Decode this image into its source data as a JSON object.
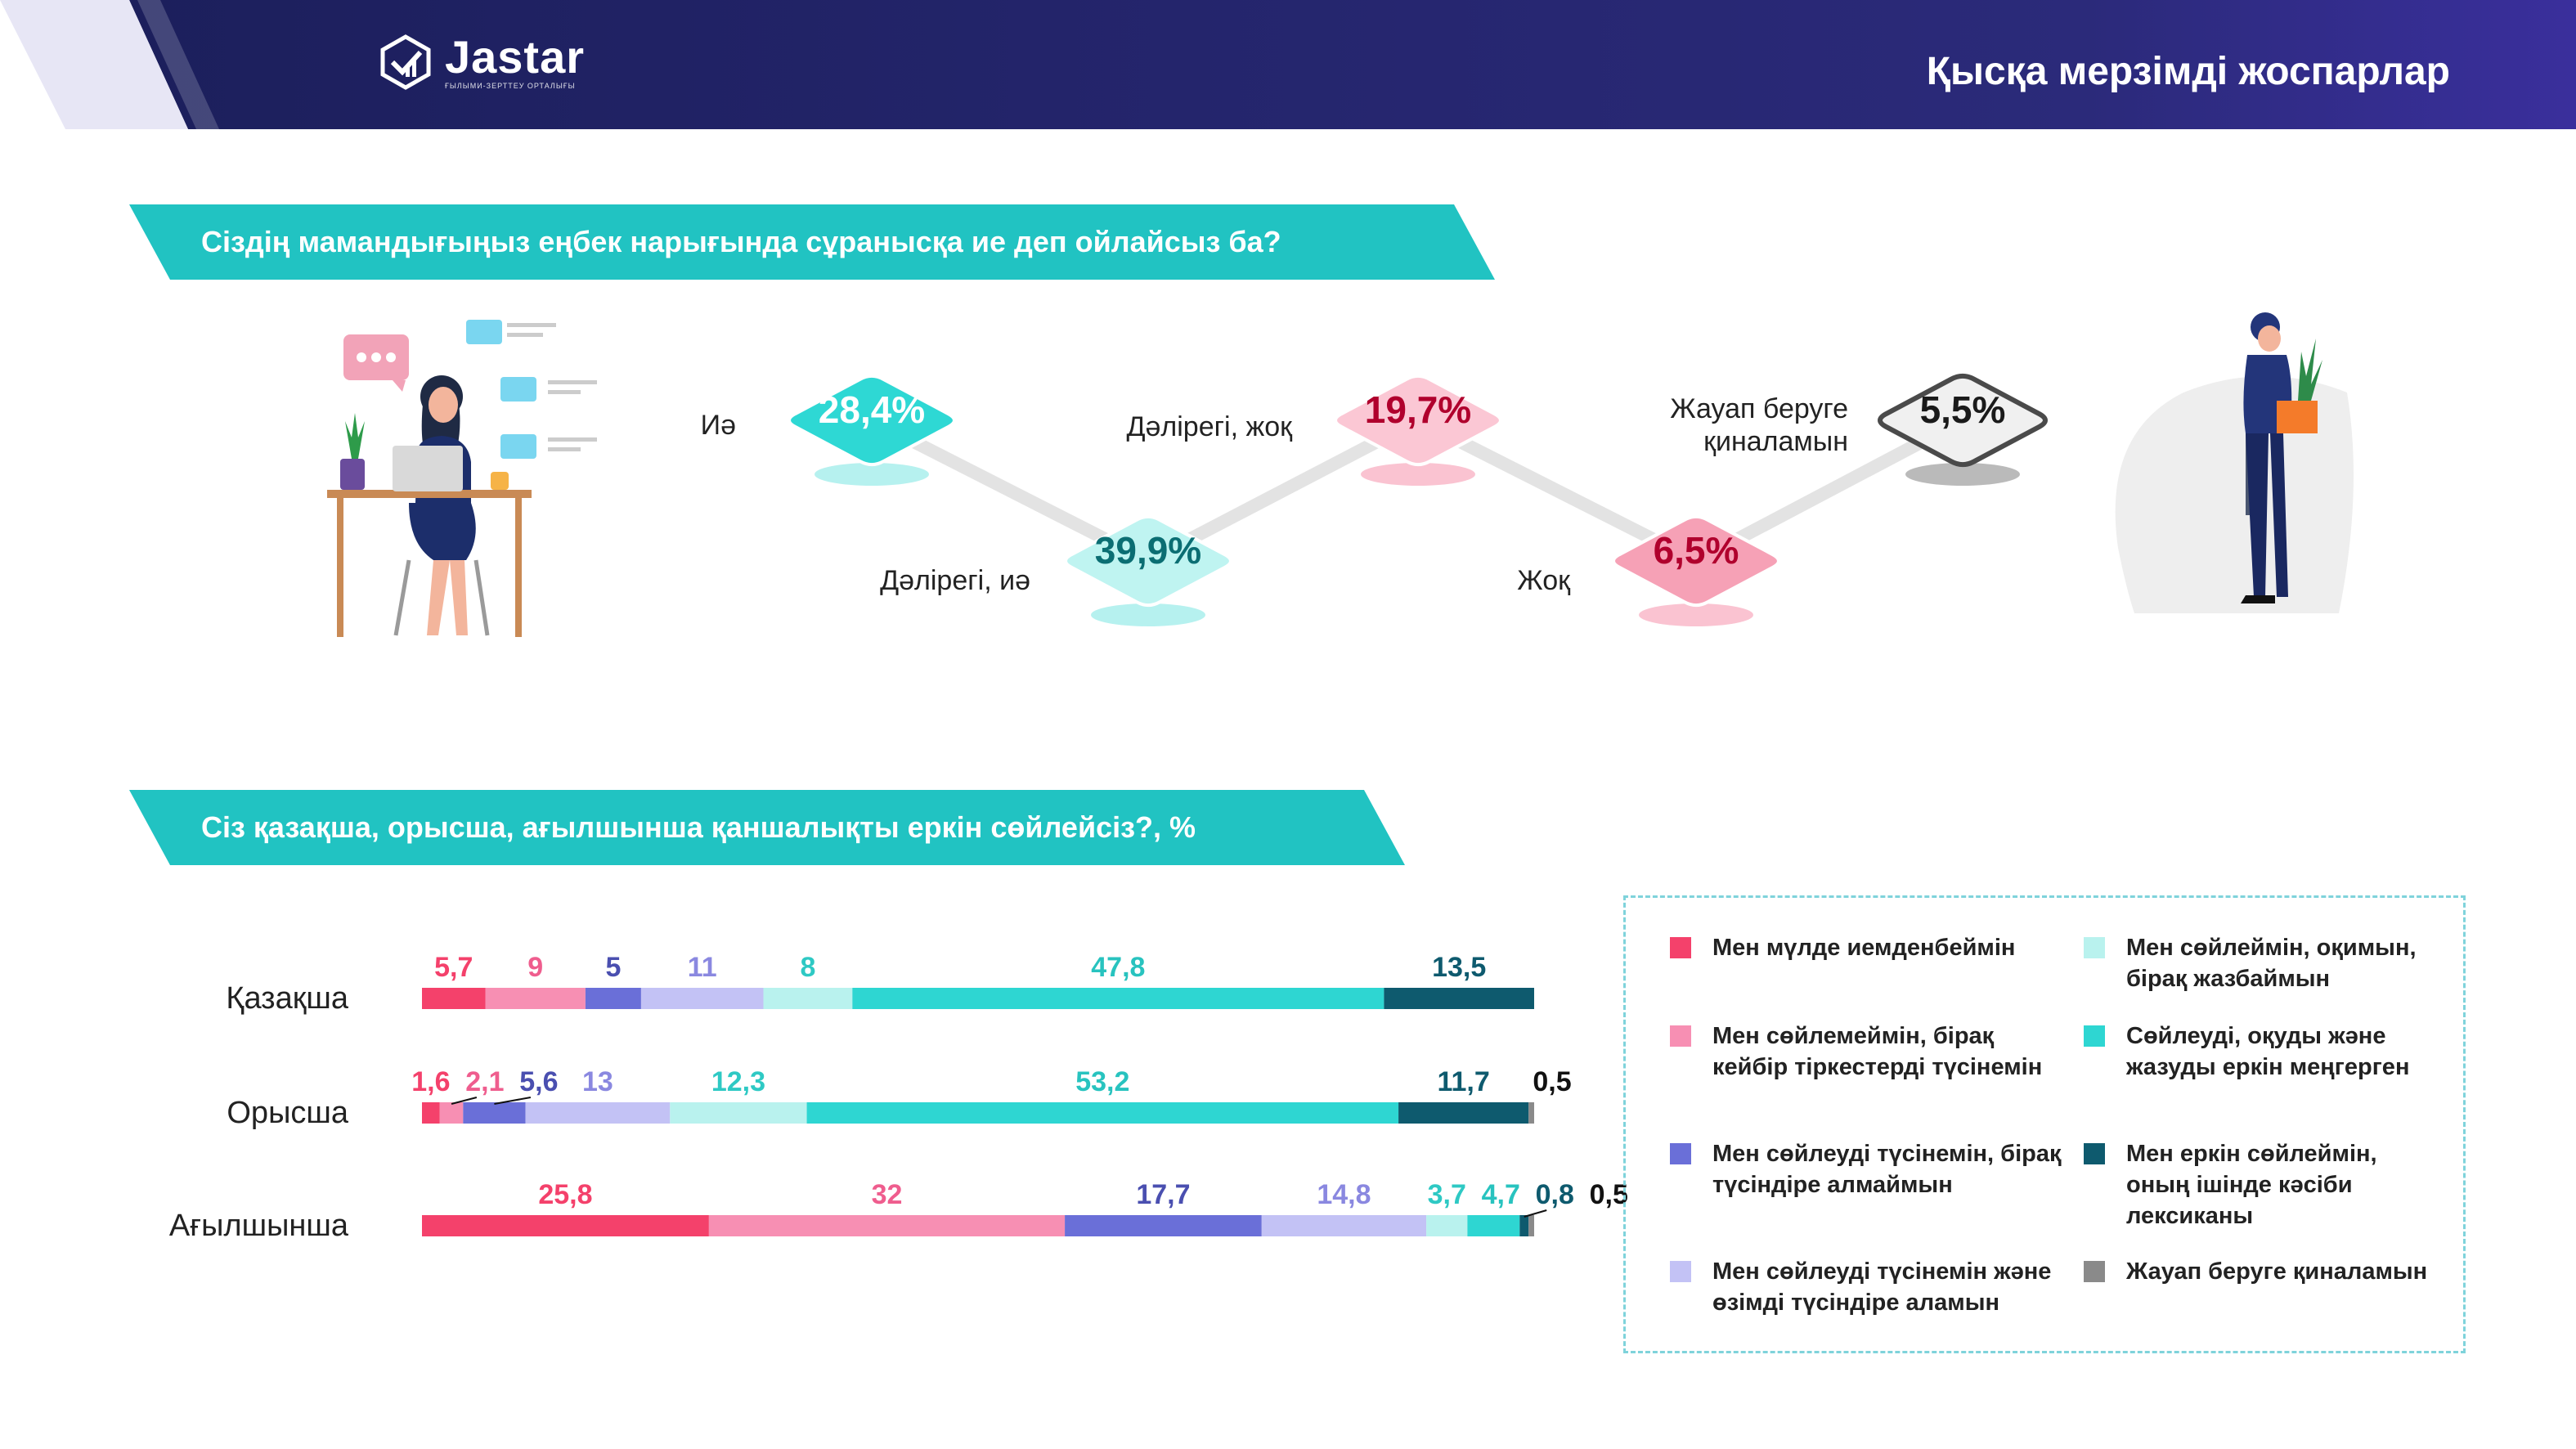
{
  "header": {
    "logo_name": "Jastar",
    "logo_sub": "ҒЫЛЫМИ-ЗЕРТТЕУ ОРТАЛЫҒЫ",
    "title": "Қысқа мерзімді жоспарлар",
    "colors": {
      "navy": "#1b1f5e",
      "purple": "#3d2e9a"
    }
  },
  "section1": {
    "question": "Сіздің мамандығыңыз еңбек нарығында сұранысқа ие деп ойлайсыз ба?",
    "illustrations": [
      "woman-at-laptop-icon",
      "man-with-plant-icon"
    ]
  },
  "section2": {
    "question": "Сіз қазақша, орысша, ағылшынша қаншалықты еркін сөйлейсіз?, %"
  },
  "chart_data": [
    {
      "type": "line",
      "title": "",
      "categories": [
        "Иә",
        "Дәлірегі, иә",
        "Дәлірегі, жоқ",
        "Жоқ",
        "Жауап беруге қиналамын"
      ],
      "values": [
        28.4,
        39.9,
        19.7,
        6.5,
        5.5
      ],
      "value_labels": [
        "28,4%",
        "39,9%",
        "19,7%",
        "6,5%",
        "5,5%"
      ],
      "colors": [
        "#2ed6d2",
        "#2ed6d2",
        "#f0527a",
        "#f0527a",
        "#3a3a3a"
      ],
      "text_colors": [
        "#ffffff",
        "#0b6e73",
        "#b0002d",
        "#b0002d",
        "#1a1a1a"
      ],
      "fill_colors": [
        "#2ed8d4",
        "#bff4f1",
        "#fbc7d4",
        "#f6a1b6",
        "#f0f0f0"
      ]
    },
    {
      "type": "bar",
      "orientation": "horizontal-stacked",
      "unit": "%",
      "categories": [
        "Қазақша",
        "Орысша",
        "Ағылшынша"
      ],
      "series": [
        {
          "name": "Мен мүлде иемденбеймін",
          "color": "#f4416b",
          "label_color": "#f4416b",
          "values": [
            5.7,
            1.6,
            25.8
          ],
          "labels": [
            "5,7",
            "1,6",
            "25,8"
          ]
        },
        {
          "name": "Мен сөйлемеймін, бірақ кейбір тіркестерді түсінемін",
          "color": "#f78fb3",
          "label_color": "#ef5d8e",
          "values": [
            9,
            2.1,
            32
          ],
          "labels": [
            "9",
            "2,1",
            "32"
          ]
        },
        {
          "name": "Мен сөйлеуді түсінемін, бірақ түсіндіре алмаймын",
          "color": "#6a6fd8",
          "label_color": "#4a4fb0",
          "values": [
            5,
            5.6,
            17.7
          ],
          "labels": [
            "5",
            "5,6",
            "17,7"
          ]
        },
        {
          "name": "Мен сөйлеуді түсінемін және өзімді түсіндіре аламын",
          "color": "#c3c2f5",
          "label_color": "#8a88e0",
          "values": [
            11,
            13,
            14.8
          ],
          "labels": [
            "11",
            "13",
            "14,8"
          ]
        },
        {
          "name": "Мен сөйлеймін, оқимын, бірақ жазбаймын",
          "color": "#b9f2ee",
          "label_color": "#2ec9c4",
          "values": [
            8,
            12.3,
            3.7
          ],
          "labels": [
            "8",
            "12,3",
            "3,7"
          ]
        },
        {
          "name": "Сөйлеуді, оқуды және жазуды еркін меңгерген",
          "color": "#2ed6d2",
          "label_color": "#28c3bf",
          "values": [
            47.8,
            53.2,
            4.7
          ],
          "labels": [
            "47,8",
            "53,2",
            "4,7"
          ]
        },
        {
          "name": "Мен еркін сөйлеймін, оның ішінде кәсіби лексиканы",
          "color": "#0e5a6e",
          "label_color": "#0e5a6e",
          "values": [
            13.5,
            11.7,
            0.8
          ],
          "labels": [
            "13,5",
            "11,7",
            "0,8"
          ]
        },
        {
          "name": "Жауап беруге қиналамын",
          "color": "#8a8a8a",
          "label_color": "#111111",
          "values": [
            0,
            0.5,
            0.5
          ],
          "labels": [
            "",
            "0,5",
            "0,5"
          ]
        }
      ],
      "legend_placement": "right"
    }
  ]
}
